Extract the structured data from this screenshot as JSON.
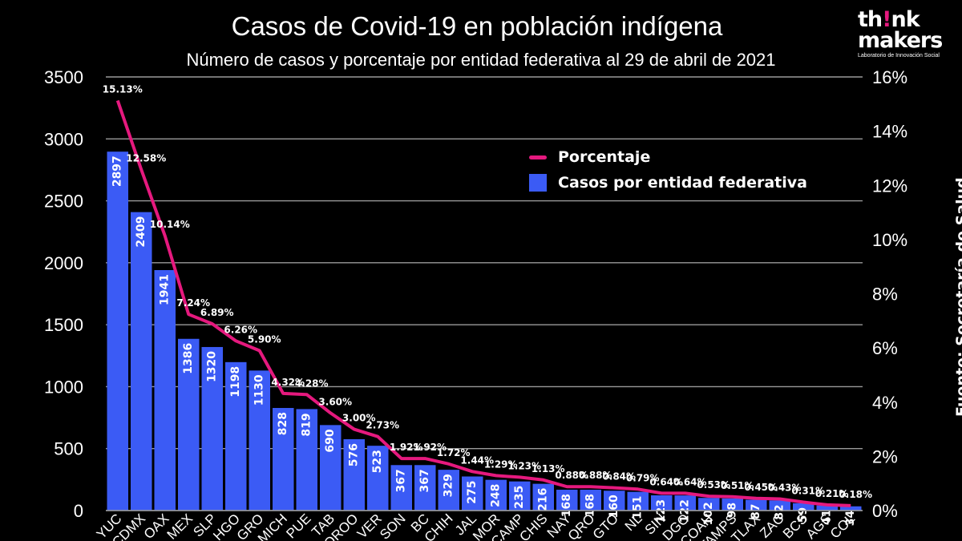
{
  "chart_data": {
    "type": "bar",
    "title": "Casos de Covid-19 en población indígena",
    "subtitle": "Número de casos y porcentaje por entidad federativa al 29 de abril de 2021",
    "categories": [
      "YUC",
      "CDMX",
      "OAX",
      "MEX",
      "SLP",
      "HGO",
      "GRO",
      "MICH",
      "PUE",
      "TAB",
      "QROO",
      "VER",
      "SON",
      "BC",
      "CHIH",
      "JAL",
      "MOR",
      "CAMP",
      "CHIS",
      "NAY",
      "QRO",
      "GTO",
      "NL",
      "SIN",
      "DGO",
      "COAH",
      "TAMPS",
      "TLAX",
      "ZAC",
      "BCS",
      "AGS",
      "COL"
    ],
    "series": [
      {
        "name": "Casos por entidad federativa",
        "type": "bar",
        "axis": "left",
        "color": "#3b5bf5",
        "values": [
          2897,
          2409,
          1941,
          1386,
          1320,
          1198,
          1130,
          828,
          819,
          690,
          576,
          523,
          367,
          367,
          329,
          275,
          248,
          235,
          216,
          168,
          168,
          160,
          151,
          123,
          122,
          102,
          98,
          87,
          82,
          59,
          41,
          34
        ]
      },
      {
        "name": "Porcentaje",
        "type": "line",
        "axis": "right",
        "color": "#e5197e",
        "values": [
          15.13,
          12.58,
          10.14,
          7.24,
          6.89,
          6.26,
          5.9,
          4.32,
          4.28,
          3.6,
          3.0,
          2.73,
          1.92,
          1.92,
          1.72,
          1.44,
          1.29,
          1.23,
          1.13,
          0.88,
          0.88,
          0.84,
          0.79,
          0.64,
          0.64,
          0.53,
          0.51,
          0.45,
          0.43,
          0.31,
          0.21,
          0.18
        ],
        "labels": [
          "15.13%",
          "12.58%",
          "10.14%",
          "7.24%",
          "6.89%",
          "6.26%",
          "5.90%",
          "4.32%",
          "4.28%",
          "3.60%",
          "3.00%",
          "2.73%",
          "1.92%",
          "1.92%",
          "1.72%",
          "1.44%",
          "1.29%",
          "1.23%",
          "1.13%",
          "0.88%",
          "0.88%",
          "0.84%",
          "0.79%",
          "0.64%",
          "0.64%",
          "0.53%",
          "0.51%",
          "0.45%",
          "0.43%",
          "0.31%",
          "0.21%",
          "0.18%"
        ]
      }
    ],
    "ylim": [
      0,
      3500
    ],
    "yticks": [
      "0",
      "500",
      "1000",
      "1500",
      "2000",
      "2500",
      "3000",
      "3500"
    ],
    "y2lim": [
      0,
      16
    ],
    "y2ticks": [
      "0%",
      "2%",
      "4%",
      "6%",
      "8%",
      "10%",
      "12%",
      "14%",
      "16%"
    ],
    "grid": true,
    "legend_position": "upper-right-inside",
    "source": "Fuente: Secretaría de Salud ."
  },
  "brand": {
    "name": "think makers",
    "tagline": "Laboratorio de Innovación Social"
  },
  "colors": {
    "background": "#000000",
    "bars": "#3b5bf5",
    "line": "#e5197e",
    "grid": "#9a9a9a",
    "text": "#ffffff"
  }
}
